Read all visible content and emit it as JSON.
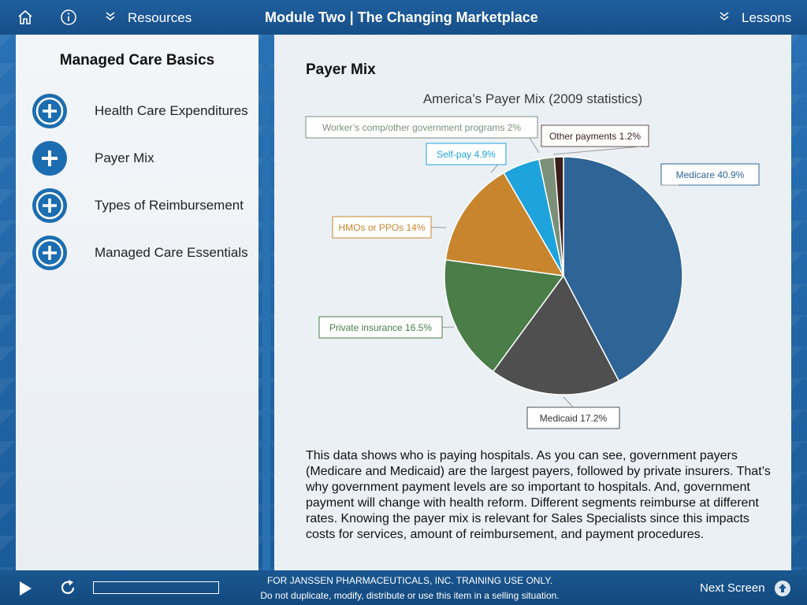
{
  "header": {
    "resources_label": "Resources",
    "title": "Module Two | The Changing Marketplace",
    "lessons_label": "Lessons"
  },
  "sidebar": {
    "title": "Managed Care Basics",
    "items": [
      {
        "label": "Health Care Expenditures",
        "active": false
      },
      {
        "label": "Payer Mix",
        "active": true
      },
      {
        "label": "Types of Reimbursement",
        "active": false
      },
      {
        "label": "Managed Care Essentials",
        "active": false
      }
    ]
  },
  "main": {
    "section_title": "Payer Mix",
    "body": "This data shows who is paying hospitals. As you can see, government payers (Medicare and Medicaid) are the largest payers, followed by private insurers. That’s why government payment levels are so important to hospitals. And, government payment will change with health reform. Different segments reimburse at different rates. Knowing the payer mix is relevant for Sales Specialists since this impacts costs for services, amount of reimbursement, and payment procedures."
  },
  "chart_data": {
    "type": "pie",
    "title": "America’s Payer Mix (2009 statistics)",
    "slices": [
      {
        "label": "Medicare 40.9%",
        "value": 40.9,
        "color": "#2e6496"
      },
      {
        "label": "Medicaid 17.2%",
        "value": 17.2,
        "color": "#4f4f4f"
      },
      {
        "label": "Private insurance 16.5%",
        "value": 16.5,
        "color": "#4a7d48"
      },
      {
        "label": "HMOs or PPOs 14%",
        "value": 14,
        "color": "#c8852e"
      },
      {
        "label": "Self-pay 4.9%",
        "value": 4.9,
        "color": "#1ea3dc"
      },
      {
        "label": "Worker’s comp/other government programs 2%",
        "value": 2,
        "color": "#7b8f79"
      },
      {
        "label": "Other payments 1.2%",
        "value": 1.2,
        "color": "#3a1e1a"
      }
    ]
  },
  "footer": {
    "line1": "FOR JANSSEN PHARMACEUTICALS, INC. TRAINING USE ONLY.",
    "line2": "Do not duplicate, modify, distribute or use this item in a selling situation.",
    "next_label": "Next Screen",
    "progress_fraction": 0
  },
  "colors": {
    "brand_blue": "#1f5f9f",
    "icon_blue": "#1c6db0"
  }
}
